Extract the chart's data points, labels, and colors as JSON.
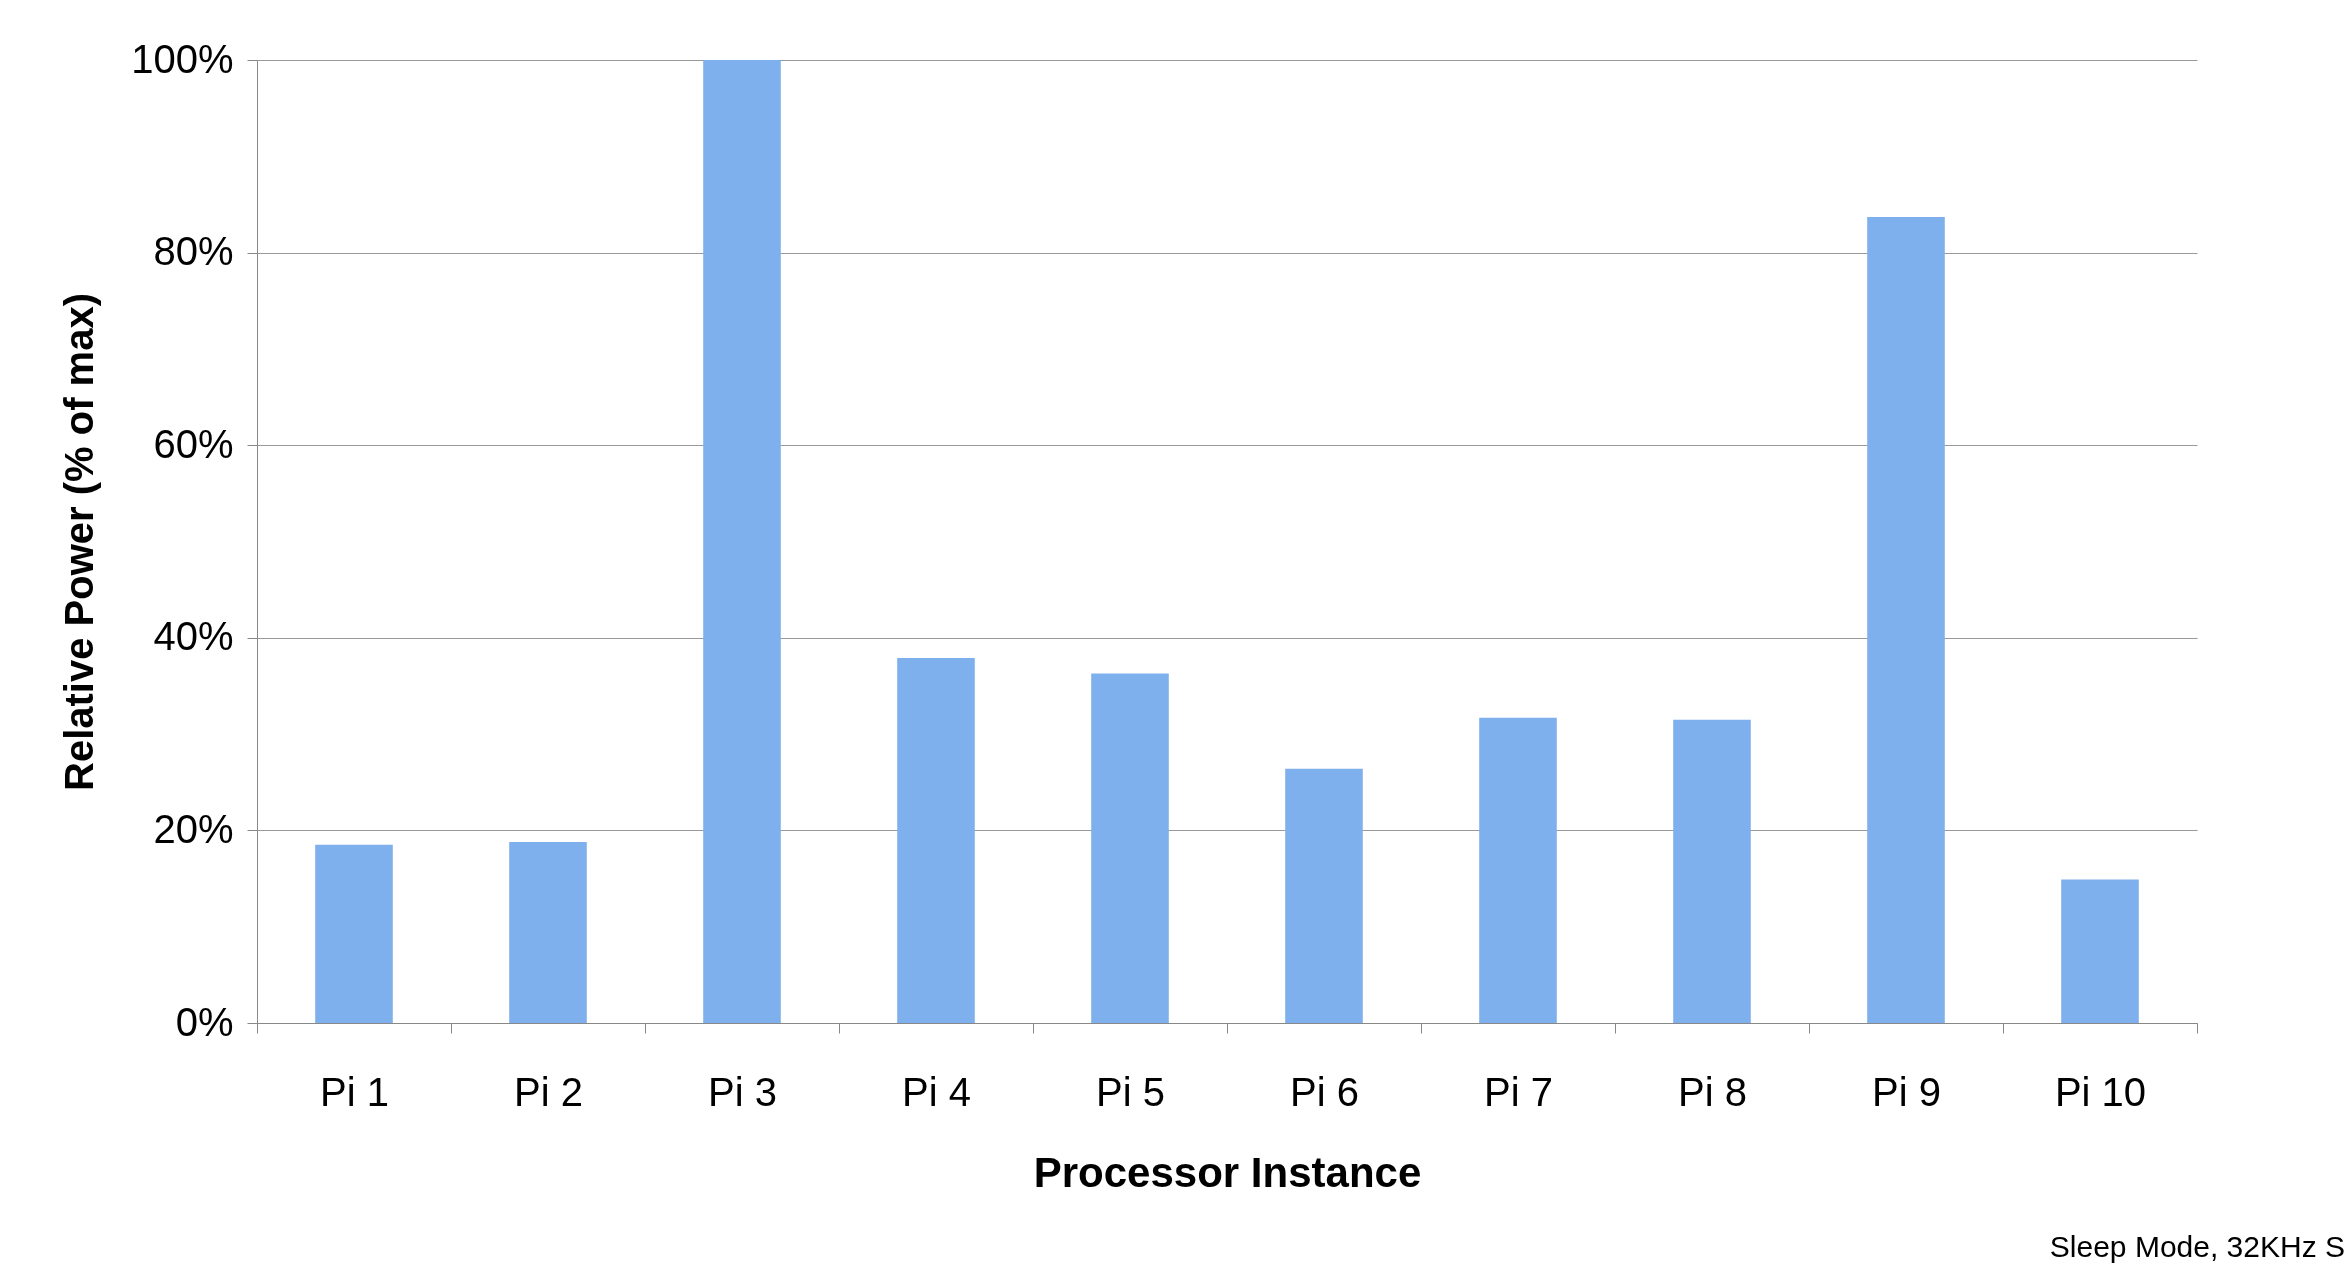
{
  "chart_data": {
    "type": "bar",
    "xlabel": "Processor Instance",
    "ylabel": "Relative Power (% of max)",
    "categories": [
      "Pi 1",
      "Pi 2",
      "Pi 3",
      "Pi 4",
      "Pi 5",
      "Pi 6",
      "Pi 7",
      "Pi 8",
      "Pi 9",
      "Pi 10"
    ],
    "values": [
      18.5,
      18.8,
      100,
      37.9,
      36.3,
      26.4,
      31.7,
      31.5,
      83.7,
      14.9
    ],
    "color": "#7fb0ee",
    "ylim": [
      0,
      100
    ],
    "yticks": [
      {
        "value": 0,
        "label": "0%"
      },
      {
        "value": 20,
        "label": "20%"
      },
      {
        "value": 40,
        "label": "40%"
      },
      {
        "value": 60,
        "label": "60%"
      },
      {
        "value": 80,
        "label": "80%"
      },
      {
        "value": 100,
        "label": "100%"
      }
    ],
    "grid": "y",
    "annotations": [
      "Sleep Mode, 32KHz S"
    ]
  }
}
